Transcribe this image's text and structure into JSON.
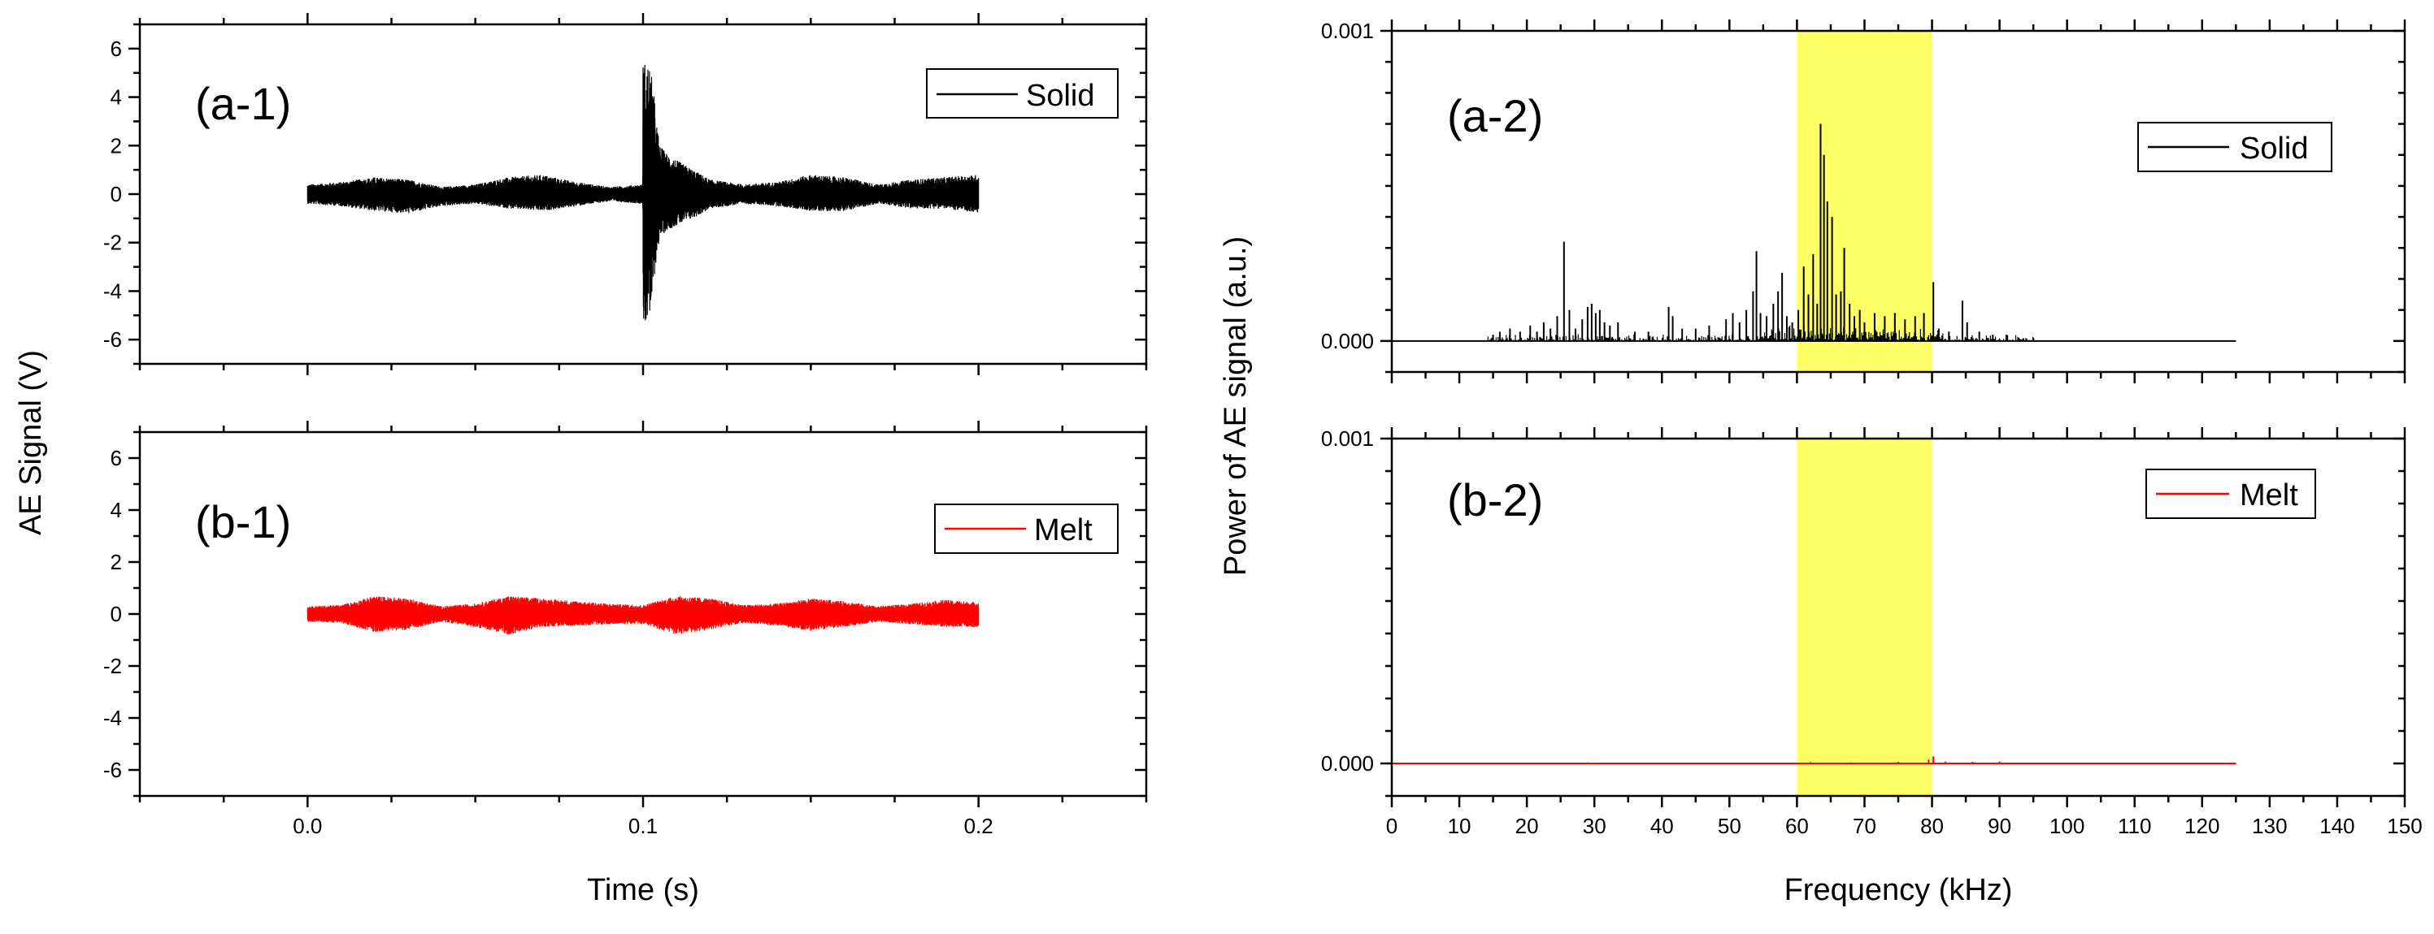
{
  "chart_data": [
    {
      "id": "a-1",
      "type": "line",
      "panel_label": "(a-1)",
      "xlabel": "Time (s)",
      "ylabel": "AE Signal (V)",
      "xlim": [
        -0.05,
        0.25
      ],
      "ylim": [
        -7,
        7
      ],
      "xticks": [
        0.0,
        0.1,
        0.2
      ],
      "xtick_labels": [
        "0.0",
        "0.1",
        "0.2"
      ],
      "yticks": [
        -6,
        -4,
        -2,
        0,
        2,
        4,
        6
      ],
      "ytick_labels": [
        "-6",
        "-4",
        "-2",
        "0",
        "2",
        "4",
        "6"
      ],
      "legend": {
        "label": "Solid",
        "color": "#000000",
        "position": "top-right"
      },
      "series": [
        {
          "name": "Solid",
          "color": "#000000",
          "x": [
            0.0,
            0.01,
            0.02,
            0.03,
            0.04,
            0.05,
            0.06,
            0.07,
            0.08,
            0.09,
            0.0999,
            0.1,
            0.101,
            0.102,
            0.103,
            0.104,
            0.105,
            0.107,
            0.11,
            0.115,
            0.12,
            0.13,
            0.14,
            0.15,
            0.16,
            0.17,
            0.18,
            0.19,
            0.2
          ],
          "upper": [
            0.4,
            0.5,
            0.7,
            0.6,
            0.3,
            0.4,
            0.7,
            0.8,
            0.5,
            0.3,
            0.4,
            5.5,
            5.4,
            5.3,
            4.5,
            3.0,
            2.0,
            1.7,
            1.4,
            1.0,
            0.6,
            0.4,
            0.5,
            0.8,
            0.7,
            0.4,
            0.6,
            0.7,
            0.8
          ],
          "lower": [
            -0.4,
            -0.5,
            -0.7,
            -0.8,
            -0.5,
            -0.4,
            -0.6,
            -0.7,
            -0.5,
            -0.3,
            -0.4,
            -5.3,
            -5.3,
            -5.2,
            -4.0,
            -2.6,
            -1.8,
            -1.5,
            -1.3,
            -1.0,
            -0.6,
            -0.4,
            -0.5,
            -0.7,
            -0.7,
            -0.4,
            -0.6,
            -0.6,
            -0.8
          ]
        }
      ]
    },
    {
      "id": "b-1",
      "type": "line",
      "panel_label": "(b-1)",
      "xlabel": "Time (s)",
      "ylabel": "AE Signal (V)",
      "xlim": [
        -0.05,
        0.25
      ],
      "ylim": [
        -7,
        7
      ],
      "xticks": [
        0.0,
        0.1,
        0.2
      ],
      "xtick_labels": [
        "0.0",
        "0.1",
        "0.2"
      ],
      "yticks": [
        -6,
        -4,
        -2,
        0,
        2,
        4,
        6
      ],
      "ytick_labels": [
        "-6",
        "-4",
        "-2",
        "0",
        "2",
        "4",
        "6"
      ],
      "legend": {
        "label": "Melt",
        "color": "#ff0000",
        "position": "top-right"
      },
      "series": [
        {
          "name": "Melt",
          "color": "#ff0000",
          "x": [
            0.0,
            0.01,
            0.02,
            0.03,
            0.04,
            0.05,
            0.06,
            0.07,
            0.08,
            0.09,
            0.1,
            0.11,
            0.12,
            0.13,
            0.14,
            0.15,
            0.16,
            0.17,
            0.18,
            0.19,
            0.2
          ],
          "upper": [
            0.3,
            0.35,
            0.7,
            0.6,
            0.3,
            0.4,
            0.7,
            0.6,
            0.5,
            0.4,
            0.35,
            0.7,
            0.6,
            0.35,
            0.4,
            0.6,
            0.5,
            0.3,
            0.4,
            0.55,
            0.45
          ],
          "lower": [
            -0.3,
            -0.35,
            -0.7,
            -0.6,
            -0.3,
            -0.5,
            -0.8,
            -0.5,
            -0.45,
            -0.4,
            -0.4,
            -0.8,
            -0.6,
            -0.35,
            -0.45,
            -0.65,
            -0.5,
            -0.3,
            -0.4,
            -0.5,
            -0.5
          ]
        }
      ]
    },
    {
      "id": "a-2",
      "type": "line",
      "panel_label": "(a-2)",
      "xlabel": "Frequency (kHz)",
      "ylabel": "Power of AE signal (a.u.)",
      "xlim": [
        0,
        150
      ],
      "ylim": [
        -0.0001,
        0.001
      ],
      "yticks": [
        0.0,
        0.001
      ],
      "ytick_labels": [
        "0.000",
        "0.001"
      ],
      "highlight_band": {
        "x0": 60,
        "x1": 80,
        "color": "#ffff00"
      },
      "legend": {
        "label": "Solid",
        "color": "#000000",
        "position": "top-right"
      },
      "series": [
        {
          "name": "Solid",
          "color": "#000000",
          "baseline_end": 125,
          "peaks": [
            [
              15,
              2e-05
            ],
            [
              16,
              3e-05
            ],
            [
              17.5,
              4e-05
            ],
            [
              19,
              3e-05
            ],
            [
              20.5,
              5e-05
            ],
            [
              21.5,
              3e-05
            ],
            [
              22.5,
              6e-05
            ],
            [
              23.5,
              4e-05
            ],
            [
              24.5,
              8e-05
            ],
            [
              25.5,
              0.00032
            ],
            [
              26.3,
              0.0001
            ],
            [
              27.2,
              4e-05
            ],
            [
              28.2,
              7e-05
            ],
            [
              29,
              0.00011
            ],
            [
              29.6,
              0.00012
            ],
            [
              30.2,
              9e-05
            ],
            [
              30.8,
              0.0001
            ],
            [
              31.5,
              6e-05
            ],
            [
              32.3,
              5e-05
            ],
            [
              33.5,
              6e-05
            ],
            [
              36,
              3e-05
            ],
            [
              38,
              3e-05
            ],
            [
              41,
              0.00011
            ],
            [
              41.6,
              8e-05
            ],
            [
              43,
              4e-05
            ],
            [
              45,
              4e-05
            ],
            [
              47,
              5e-05
            ],
            [
              49.5,
              7e-05
            ],
            [
              50.5,
              9e-05
            ],
            [
              51.5,
              6e-05
            ],
            [
              52.5,
              0.0001
            ],
            [
              53.5,
              0.00016
            ],
            [
              54,
              0.00029
            ],
            [
              54.6,
              9e-05
            ],
            [
              55.5,
              8e-05
            ],
            [
              56.5,
              0.00012
            ],
            [
              57.2,
              0.00016
            ],
            [
              57.8,
              0.00022
            ],
            [
              58.5,
              8e-05
            ],
            [
              59.3,
              6e-05
            ],
            [
              60.2,
              0.0001
            ],
            [
              61,
              0.00024
            ],
            [
              61.7,
              0.00015
            ],
            [
              62.4,
              0.00028
            ],
            [
              63,
              0.00012
            ],
            [
              63.5,
              0.0007
            ],
            [
              64,
              0.0006
            ],
            [
              64.5,
              0.00045
            ],
            [
              65.2,
              0.0004
            ],
            [
              65.8,
              0.00015
            ],
            [
              66.5,
              0.00016
            ],
            [
              67,
              0.0003
            ],
            [
              67.8,
              0.00012
            ],
            [
              68.5,
              8e-05
            ],
            [
              69.3,
              0.0001
            ],
            [
              70,
              6e-05
            ],
            [
              71.5,
              9e-05
            ],
            [
              73,
              8e-05
            ],
            [
              74.5,
              9e-05
            ],
            [
              76,
              7e-05
            ],
            [
              77.5,
              8e-05
            ],
            [
              78.8,
              9e-05
            ],
            [
              80.2,
              0.00019
            ],
            [
              81,
              4e-05
            ],
            [
              82.5,
              3e-05
            ],
            [
              84.5,
              0.00013
            ],
            [
              85.2,
              6e-05
            ],
            [
              87,
              3e-05
            ],
            [
              89,
              2e-05
            ],
            [
              91,
              2e-05
            ],
            [
              95,
              1e-05
            ]
          ]
        }
      ]
    },
    {
      "id": "b-2",
      "type": "line",
      "panel_label": "(b-2)",
      "xlabel": "Frequency (kHz)",
      "ylabel": "Power of AE signal (a.u.)",
      "xlim": [
        0,
        150
      ],
      "ylim": [
        -0.0001,
        0.001
      ],
      "xticks": [
        0,
        10,
        20,
        30,
        40,
        50,
        60,
        70,
        80,
        90,
        100,
        110,
        120,
        130,
        140,
        150
      ],
      "xtick_labels": [
        "0",
        "10",
        "20",
        "30",
        "40",
        "50",
        "60",
        "70",
        "80",
        "90",
        "100",
        "110",
        "120",
        "130",
        "140",
        "150"
      ],
      "yticks": [
        0.0,
        0.001
      ],
      "ytick_labels": [
        "0.000",
        "0.001"
      ],
      "highlight_band": {
        "x0": 60,
        "x1": 80,
        "color": "#ffff00"
      },
      "legend": {
        "label": "Melt",
        "color": "#ff0000",
        "position": "top-right"
      },
      "series": [
        {
          "name": "Melt",
          "color": "#ff0000",
          "baseline_end": 125,
          "peaks": [
            [
              29,
              3e-06
            ],
            [
              45,
              2e-06
            ],
            [
              62,
              4e-06
            ],
            [
              68,
              3e-06
            ],
            [
              75,
              5e-06
            ],
            [
              79.5,
              1.2e-05
            ],
            [
              80.2,
              2.2e-05
            ],
            [
              82,
              6e-06
            ],
            [
              86,
              5e-06
            ],
            [
              90,
              6e-06
            ],
            [
              105,
              2e-06
            ]
          ]
        }
      ]
    }
  ]
}
